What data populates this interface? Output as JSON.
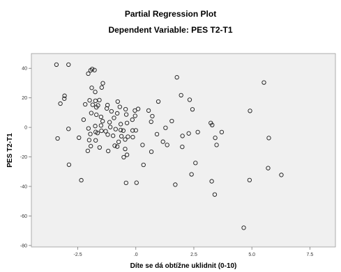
{
  "chart_data": {
    "type": "scatter",
    "title": "Partial Regression Plot",
    "subtitle": "Dependent Variable: PES T2-T1",
    "xlabel": "Díte se dá obtížne uklidnit (0-10)",
    "ylabel": "PES T2-T1",
    "xlim": [
      -4.5,
      8.6
    ],
    "ylim": [
      -81,
      50
    ],
    "x_ticks": [
      -2.5,
      0.0,
      2.5,
      5.0,
      7.5
    ],
    "x_tick_labels": [
      "-2.5",
      ".0",
      "2.5",
      "5.0",
      "7.5"
    ],
    "y_ticks": [
      40,
      20,
      0,
      -20,
      -40,
      -60,
      -80
    ],
    "y_tick_labels": [
      "40",
      "20",
      "0",
      "-20",
      "-40",
      "-60",
      "-80"
    ],
    "grid": false,
    "marker": "open-circle",
    "points": [
      [
        -3.42,
        42.5
      ],
      [
        -2.9,
        42.5
      ],
      [
        -1.88,
        39.5
      ],
      [
        -1.78,
        38.8
      ],
      [
        -2.05,
        36.4
      ],
      [
        -1.95,
        38.6
      ],
      [
        -1.42,
        29.9
      ],
      [
        -1.47,
        27.0
      ],
      [
        -1.9,
        26.8
      ],
      [
        -1.75,
        24.0
      ],
      [
        -3.07,
        21.4
      ],
      [
        -3.08,
        19.5
      ],
      [
        -1.99,
        18.3
      ],
      [
        -1.74,
        18.0
      ],
      [
        -1.57,
        18.5
      ],
      [
        -0.78,
        17.5
      ],
      [
        -3.25,
        16.1
      ],
      [
        -2.18,
        15.6
      ],
      [
        -1.86,
        15.3
      ],
      [
        -1.63,
        14.9
      ],
      [
        -1.22,
        15.1
      ],
      [
        -1.7,
        13.6
      ],
      [
        -1.25,
        12.8
      ],
      [
        -0.69,
        13.9
      ],
      [
        -0.44,
        12.3
      ],
      [
        -0.04,
        11.4
      ],
      [
        0.1,
        12.5
      ],
      [
        -1.05,
        10.9
      ],
      [
        -1.92,
        9.7
      ],
      [
        -1.7,
        8.6
      ],
      [
        -1.5,
        7.1
      ],
      [
        -2.25,
        5.2
      ],
      [
        -0.8,
        9.5
      ],
      [
        -0.41,
        8.7
      ],
      [
        -0.03,
        7.8
      ],
      [
        -0.94,
        6.4
      ],
      [
        -0.15,
        5.2
      ],
      [
        -1.43,
        4.2
      ],
      [
        -1.13,
        3.5
      ],
      [
        -0.38,
        3.0
      ],
      [
        -0.65,
        2.2
      ],
      [
        -1.5,
        1.3
      ],
      [
        -1.75,
        0.9
      ],
      [
        -1.1,
        0.2
      ],
      [
        -2.04,
        -0.7
      ],
      [
        -1.48,
        -2.3
      ],
      [
        -1.3,
        -2.6
      ],
      [
        -0.87,
        -1.2
      ],
      [
        -0.65,
        -1.8
      ],
      [
        -0.54,
        -2.2
      ],
      [
        -0.14,
        -2.1
      ],
      [
        0.0,
        -2.0
      ],
      [
        -1.73,
        -3.1
      ],
      [
        -1.65,
        -3.8
      ],
      [
        -2.9,
        -1.0
      ],
      [
        -1.96,
        -4.5
      ],
      [
        -2.45,
        -7.0
      ],
      [
        -3.37,
        -7.5
      ],
      [
        -2.01,
        -8.6
      ],
      [
        -1.21,
        -4.9
      ],
      [
        -0.98,
        -5.7
      ],
      [
        -0.62,
        -6.0
      ],
      [
        -0.34,
        -6.3
      ],
      [
        -0.13,
        -6.6
      ],
      [
        -1.73,
        -8.8
      ],
      [
        -0.74,
        -9.8
      ],
      [
        -0.46,
        -8.2
      ],
      [
        -0.91,
        -12.4
      ],
      [
        -1.94,
        -12.7
      ],
      [
        -1.56,
        -13.6
      ],
      [
        -0.8,
        -13.0
      ],
      [
        -0.46,
        -14.6
      ],
      [
        -2.07,
        -15.9
      ],
      [
        -1.19,
        -16.0
      ],
      [
        -0.38,
        -18.6
      ],
      [
        -0.52,
        -20.2
      ],
      [
        -2.88,
        -25.3
      ],
      [
        0.33,
        -25.4
      ],
      [
        -2.35,
        -35.8
      ],
      [
        -0.42,
        -37.6
      ],
      [
        0.03,
        -37.5
      ],
      [
        0.29,
        -11.9
      ],
      [
        0.55,
        11.4
      ],
      [
        0.66,
        3.8
      ],
      [
        0.71,
        7.6
      ],
      [
        0.97,
        17.5
      ],
      [
        0.91,
        -4.6
      ],
      [
        1.28,
        -0.3
      ],
      [
        1.17,
        -9.7
      ],
      [
        1.35,
        -11.9
      ],
      [
        0.67,
        -16.5
      ],
      [
        1.55,
        4.3
      ],
      [
        1.77,
        33.9
      ],
      [
        1.95,
        21.8
      ],
      [
        2.32,
        18.7
      ],
      [
        2.44,
        12.2
      ],
      [
        2.01,
        -5.8
      ],
      [
        2.28,
        -4.1
      ],
      [
        2.0,
        -13.2
      ],
      [
        1.7,
        -38.8
      ],
      [
        2.57,
        -24.1
      ],
      [
        2.67,
        -3.2
      ],
      [
        2.4,
        -31.8
      ],
      [
        3.23,
        3.0
      ],
      [
        3.29,
        1.6
      ],
      [
        3.42,
        -7.1
      ],
      [
        3.48,
        -11.9
      ],
      [
        3.27,
        -36.5
      ],
      [
        3.4,
        -45.5
      ],
      [
        3.7,
        -3.2
      ],
      [
        4.92,
        11.2
      ],
      [
        5.52,
        30.4
      ],
      [
        4.9,
        -35.7
      ],
      [
        4.65,
        -68.0
      ],
      [
        5.73,
        -7.2
      ],
      [
        5.7,
        -27.6
      ],
      [
        6.27,
        -32.2
      ]
    ]
  }
}
